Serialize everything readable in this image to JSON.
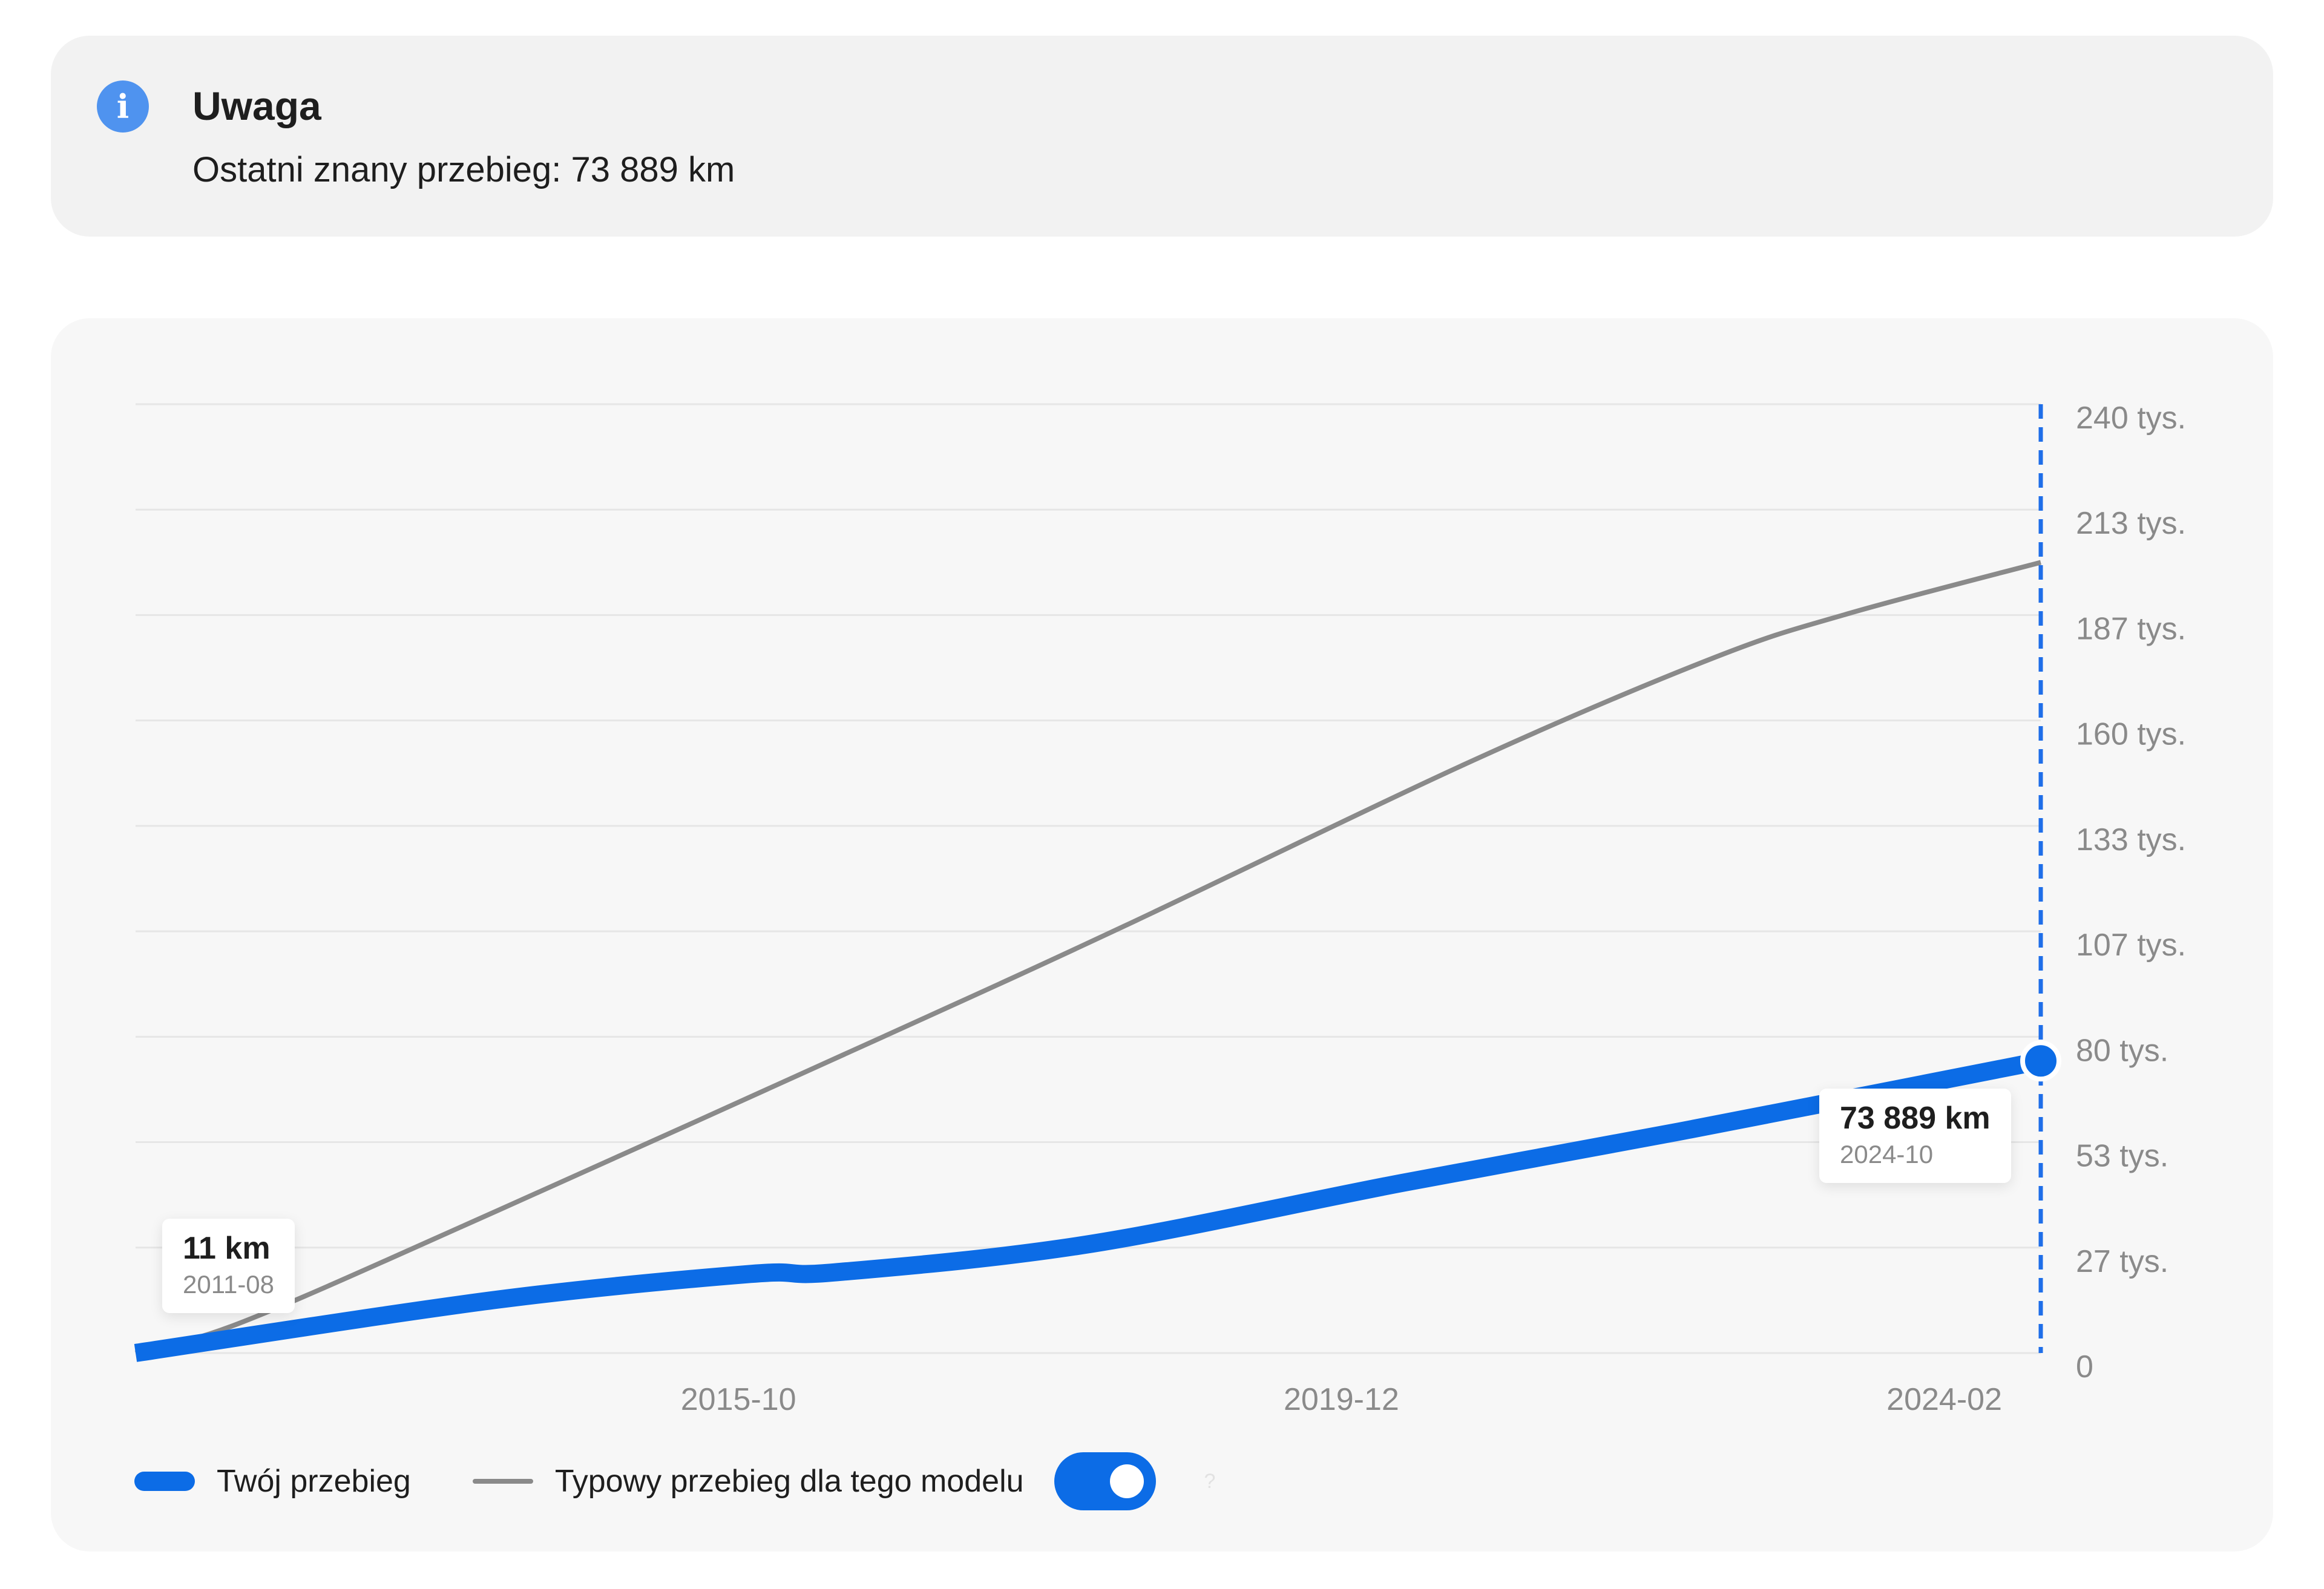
{
  "notice": {
    "icon": "info-icon",
    "icon_glyph": "i",
    "title": "Uwaga",
    "text": "Ostatni znany przebieg: 73 889 km"
  },
  "chart_data": {
    "type": "line",
    "x_type": "date",
    "xlim": [
      "2011-08",
      "2024-10"
    ],
    "ylim": [
      0,
      240000
    ],
    "x_ticks": [
      "2015-10",
      "2019-12",
      "2024-02"
    ],
    "y_ticks": [
      {
        "value": 0,
        "label": "0"
      },
      {
        "value": 26667,
        "label": "27 tys."
      },
      {
        "value": 53333,
        "label": "53 tys."
      },
      {
        "value": 80000,
        "label": "80 tys."
      },
      {
        "value": 106667,
        "label": "107 tys."
      },
      {
        "value": 133333,
        "label": "133 tys."
      },
      {
        "value": 160000,
        "label": "160 tys."
      },
      {
        "value": 186667,
        "label": "187 tys."
      },
      {
        "value": 213333,
        "label": "213 tys."
      },
      {
        "value": 240000,
        "label": "240 tys."
      }
    ],
    "grid": true,
    "y_axis_position": "right",
    "legend_position": "bottom-left",
    "series": [
      {
        "name": "Twój przebieg",
        "color": "#0c6ce6",
        "points": [
          [
            "2011-08",
            11
          ],
          [
            "2014-02",
            13500
          ],
          [
            "2015-11",
            20000
          ],
          [
            "2016-06",
            20400
          ],
          [
            "2018-03",
            27500
          ],
          [
            "2020-05",
            43000
          ],
          [
            "2022-04",
            56000
          ],
          [
            "2024-10",
            73889
          ]
        ]
      },
      {
        "name": "Typowy przebieg dla tego modelu",
        "color": "#8a8a8a",
        "points": [
          [
            "2011-08",
            0
          ],
          [
            "2012-05",
            8000
          ],
          [
            "2014-02",
            36000
          ],
          [
            "2016-10",
            80000
          ],
          [
            "2018-06",
            108000
          ],
          [
            "2020-11",
            150000
          ],
          [
            "2022-07",
            176000
          ],
          [
            "2023-06",
            187000
          ],
          [
            "2024-10",
            200000
          ]
        ]
      }
    ],
    "annotations": [
      {
        "value_label": "11 km",
        "date_label": "2011-08"
      },
      {
        "value_label": "73 889 km",
        "date_label": "2024-10"
      }
    ],
    "cursor_date": "2024-10",
    "cursor_color": "#1f6ee8"
  },
  "legend": {
    "items": [
      {
        "label": "Twój przebieg",
        "swatch": "thick-blue-line"
      },
      {
        "label": "Typowy przebieg dla tego modelu",
        "swatch": "thin-gray-line"
      }
    ],
    "toggle_on": true,
    "help_icon": "question-mark-icon",
    "help_glyph": "?"
  }
}
